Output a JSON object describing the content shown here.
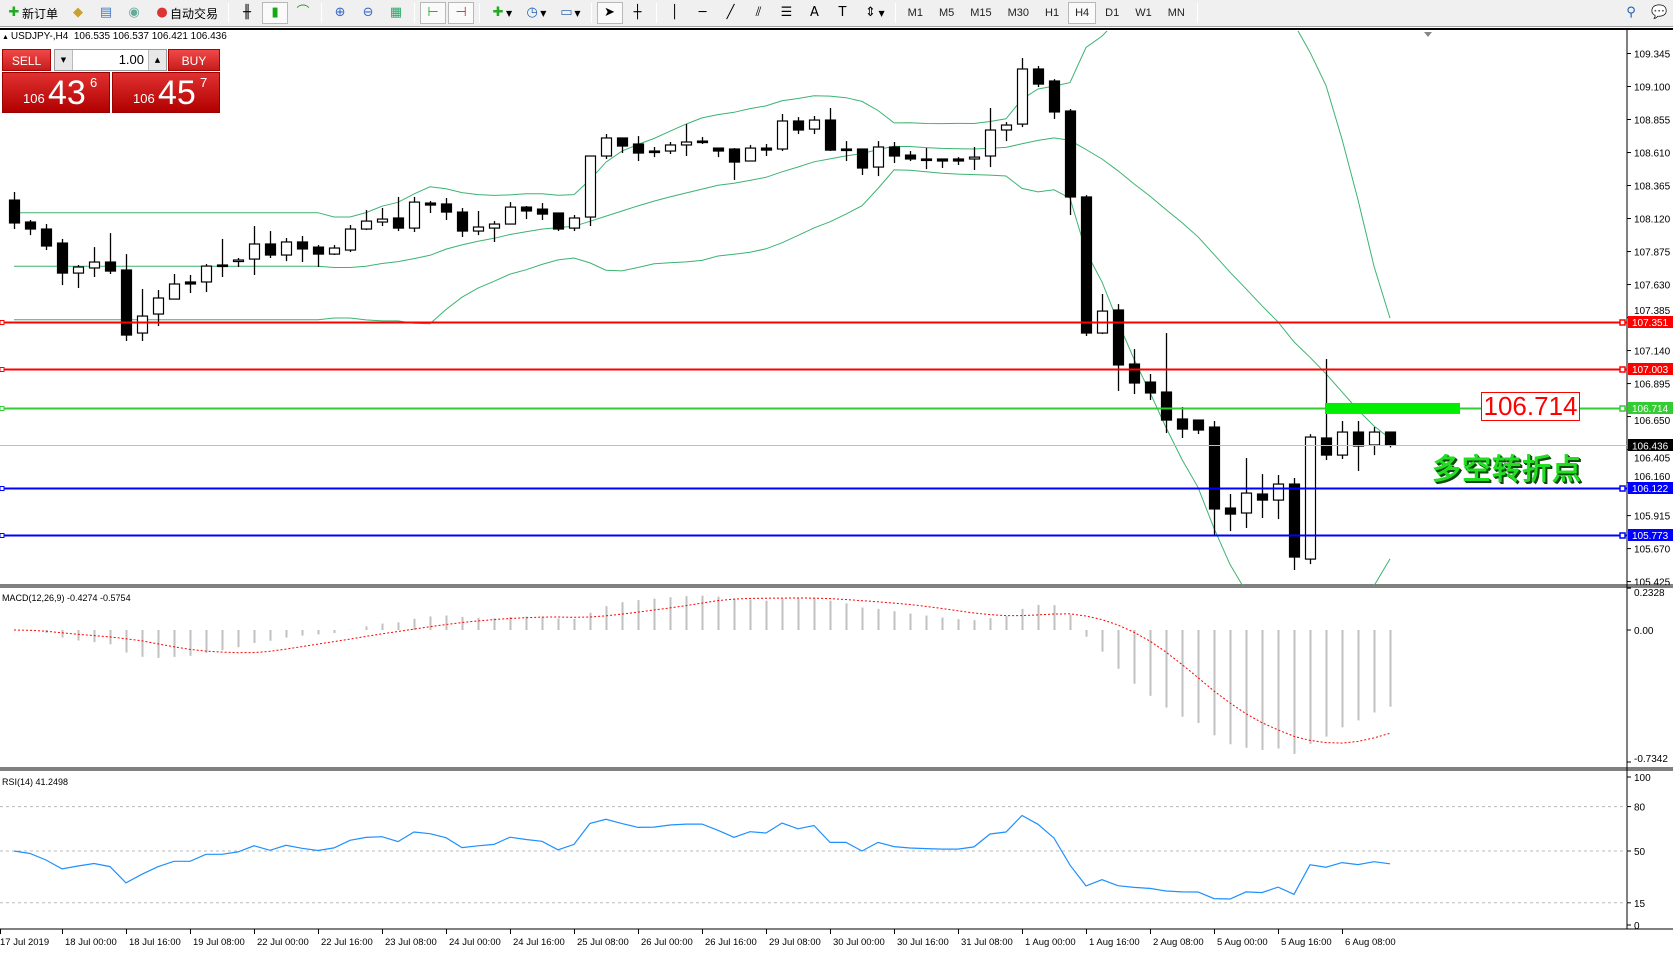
{
  "toolbar": {
    "new_order": "新订单",
    "auto_trading": "自动交易",
    "timeframes": [
      "M1",
      "M5",
      "M15",
      "M30",
      "H1",
      "H4",
      "D1",
      "W1",
      "MN"
    ],
    "active_timeframe": "H4",
    "icons": [
      "new-order-icon",
      "market-watch-icon",
      "navigator-icon",
      "signal-icon",
      "auto-trading-icon",
      "bar-chart-icon",
      "candlestick-icon",
      "line-chart-icon",
      "zoom-in-icon",
      "zoom-out-icon",
      "tile-windows-icon",
      "chart-shift-icon",
      "autoscroll-icon",
      "indicators-icon",
      "periods-icon",
      "templates-icon",
      "cursor-icon",
      "crosshair-icon",
      "vertical-line-icon",
      "horizontal-line-icon",
      "trendline-icon",
      "equidistant-channel-icon",
      "fibonacci-icon",
      "text-icon",
      "text-label-icon",
      "arrows-icon",
      "search-icon",
      "chat-icon"
    ]
  },
  "header": {
    "symbol": "USDJPY-,H4",
    "ohlc": "106.535 106.537 106.421 106.436"
  },
  "trade_panel": {
    "sell_label": "SELL",
    "buy_label": "BUY",
    "lot": "1.00",
    "sell": {
      "small": "106",
      "large": "43",
      "pip": "6"
    },
    "buy": {
      "small": "106",
      "large": "45",
      "pip": "7"
    }
  },
  "colors": {
    "up_candle": "#ffffff",
    "down_candle": "#000000",
    "bands": "#3cb371",
    "resistance": "#ff0000",
    "pivot": "#33cc33",
    "support": "#0000ff",
    "macd_hist": "#c0c0c0",
    "macd_signal": "#ff0000",
    "rsi": "#1e90ff"
  },
  "annotation": {
    "pivot_value": "106.714",
    "pivot_text": "多空转折点",
    "pivot_bar_color": "#00ee00"
  },
  "chart_data": {
    "type": "candlestick",
    "symbol": "USDJPY-",
    "timeframe": "H4",
    "ohlc_order": [
      "open",
      "high",
      "low",
      "close"
    ],
    "ylim": [
      105.4,
      109.51
    ],
    "price_ticks": [
      "109.345",
      "109.100",
      "108.855",
      "108.610",
      "108.365",
      "108.120",
      "107.875",
      "107.630",
      "107.385",
      "107.140",
      "106.895",
      "106.650",
      "106.405",
      "106.160",
      "105.915",
      "105.670",
      "105.425"
    ],
    "time_labels": [
      {
        "bar": -1,
        "label": "17 Jul 2019"
      },
      {
        "bar": 3,
        "label": "18 Jul 00:00"
      },
      {
        "bar": 7,
        "label": "18 Jul 16:00"
      },
      {
        "bar": 11,
        "label": "19 Jul 08:00"
      },
      {
        "bar": 15,
        "label": "22 Jul 00:00"
      },
      {
        "bar": 19,
        "label": "22 Jul 16:00"
      },
      {
        "bar": 23,
        "label": "23 Jul 08:00"
      },
      {
        "bar": 27,
        "label": "24 Jul 00:00"
      },
      {
        "bar": 31,
        "label": "24 Jul 16:00"
      },
      {
        "bar": 35,
        "label": "25 Jul 08:00"
      },
      {
        "bar": 39,
        "label": "26 Jul 00:00"
      },
      {
        "bar": 43,
        "label": "26 Jul 16:00"
      },
      {
        "bar": 47,
        "label": "29 Jul 08:00"
      },
      {
        "bar": 51,
        "label": "30 Jul 00:00"
      },
      {
        "bar": 55,
        "label": "30 Jul 16:00"
      },
      {
        "bar": 59,
        "label": "31 Jul 08:00"
      },
      {
        "bar": 63,
        "label": "1 Aug 00:00"
      },
      {
        "bar": 67,
        "label": "1 Aug 16:00"
      },
      {
        "bar": 71,
        "label": "2 Aug 08:00"
      },
      {
        "bar": 75,
        "label": "5 Aug 00:00"
      },
      {
        "bar": 79,
        "label": "5 Aug 16:00"
      },
      {
        "bar": 83,
        "label": "6 Aug 08:00"
      }
    ],
    "candles": [
      [
        108.257,
        108.317,
        108.042,
        108.087
      ],
      [
        108.094,
        108.109,
        107.997,
        108.042
      ],
      [
        108.042,
        108.079,
        107.886,
        107.916
      ],
      [
        107.938,
        107.968,
        107.626,
        107.715
      ],
      [
        107.715,
        107.775,
        107.604,
        107.76
      ],
      [
        107.753,
        107.908,
        107.686,
        107.797
      ],
      [
        107.797,
        108.012,
        107.708,
        107.73
      ],
      [
        107.738,
        107.856,
        107.211,
        107.255
      ],
      [
        107.27,
        107.597,
        107.211,
        107.396
      ],
      [
        107.411,
        107.589,
        107.322,
        107.53
      ],
      [
        107.522,
        107.708,
        107.522,
        107.634
      ],
      [
        107.649,
        107.701,
        107.567,
        107.634
      ],
      [
        107.649,
        107.782,
        107.574,
        107.767
      ],
      [
        107.775,
        107.968,
        107.686,
        107.767
      ],
      [
        107.804,
        107.827,
        107.76,
        107.812
      ],
      [
        107.819,
        108.064,
        107.701,
        107.931
      ],
      [
        107.931,
        108.027,
        107.827,
        107.849
      ],
      [
        107.849,
        107.975,
        107.804,
        107.946
      ],
      [
        107.946,
        107.99,
        107.797,
        107.894
      ],
      [
        107.908,
        107.923,
        107.76,
        107.856
      ],
      [
        107.856,
        107.923,
        107.849,
        107.901
      ],
      [
        107.886,
        108.072,
        107.871,
        108.042
      ],
      [
        108.042,
        108.183,
        108.035,
        108.101
      ],
      [
        108.094,
        108.198,
        108.064,
        108.116
      ],
      [
        108.124,
        108.28,
        108.027,
        108.049
      ],
      [
        108.049,
        108.28,
        108.02,
        108.242
      ],
      [
        108.235,
        108.25,
        108.161,
        108.22
      ],
      [
        108.228,
        108.272,
        108.109,
        108.168
      ],
      [
        108.168,
        108.198,
        107.983,
        108.027
      ],
      [
        108.027,
        108.176,
        107.997,
        108.057
      ],
      [
        108.049,
        108.101,
        107.946,
        108.079
      ],
      [
        108.079,
        108.242,
        108.079,
        108.205
      ],
      [
        108.205,
        108.213,
        108.116,
        108.176
      ],
      [
        108.19,
        108.235,
        108.109,
        108.153
      ],
      [
        108.161,
        108.161,
        108.027,
        108.042
      ],
      [
        108.049,
        108.146,
        108.027,
        108.124
      ],
      [
        108.131,
        108.584,
        108.064,
        108.584
      ],
      [
        108.584,
        108.747,
        108.562,
        108.718
      ],
      [
        108.718,
        108.718,
        108.606,
        108.658
      ],
      [
        108.673,
        108.732,
        108.547,
        108.606
      ],
      [
        108.621,
        108.651,
        108.576,
        108.614
      ],
      [
        108.621,
        108.688,
        108.599,
        108.666
      ],
      [
        108.666,
        108.821,
        108.584,
        108.688
      ],
      [
        108.695,
        108.725,
        108.673,
        108.688
      ],
      [
        108.643,
        108.643,
        108.576,
        108.621
      ],
      [
        108.636,
        108.643,
        108.406,
        108.539
      ],
      [
        108.547,
        108.666,
        108.547,
        108.643
      ],
      [
        108.643,
        108.673,
        108.584,
        108.628
      ],
      [
        108.636,
        108.896,
        108.621,
        108.844
      ],
      [
        108.844,
        108.873,
        108.747,
        108.777
      ],
      [
        108.784,
        108.881,
        108.747,
        108.851
      ],
      [
        108.851,
        108.94,
        108.621,
        108.628
      ],
      [
        108.636,
        108.695,
        108.547,
        108.628
      ],
      [
        108.636,
        108.636,
        108.443,
        108.495
      ],
      [
        108.502,
        108.695,
        108.435,
        108.651
      ],
      [
        108.651,
        108.688,
        108.532,
        108.584
      ],
      [
        108.591,
        108.621,
        108.547,
        108.562
      ],
      [
        108.562,
        108.643,
        108.487,
        108.554
      ],
      [
        108.562,
        108.562,
        108.495,
        108.547
      ],
      [
        108.562,
        108.576,
        108.517,
        108.547
      ],
      [
        108.562,
        108.651,
        108.48,
        108.576
      ],
      [
        108.584,
        108.94,
        108.502,
        108.777
      ],
      [
        108.777,
        108.836,
        108.695,
        108.814
      ],
      [
        108.821,
        109.311,
        108.799,
        109.23
      ],
      [
        109.23,
        109.252,
        109.096,
        109.118
      ],
      [
        109.141,
        109.155,
        108.859,
        108.911
      ],
      [
        108.918,
        108.933,
        108.146,
        108.28
      ],
      [
        108.28,
        108.294,
        107.248,
        107.27
      ],
      [
        107.27,
        107.56,
        107.263,
        107.433
      ],
      [
        107.441,
        107.485,
        106.84,
        107.033
      ],
      [
        107.04,
        107.151,
        106.817,
        106.899
      ],
      [
        106.906,
        106.966,
        106.773,
        106.825
      ],
      [
        106.832,
        107.27,
        106.528,
        106.624
      ],
      [
        106.632,
        106.721,
        106.491,
        106.557
      ],
      [
        106.624,
        106.624,
        106.52,
        106.55
      ],
      [
        106.572,
        106.617,
        105.771,
        105.964
      ],
      [
        105.971,
        106.075,
        105.8,
        105.926
      ],
      [
        105.934,
        106.342,
        105.823,
        106.082
      ],
      [
        106.075,
        106.223,
        105.897,
        106.03
      ],
      [
        106.03,
        106.216,
        105.889,
        106.149
      ],
      [
        106.149,
        106.194,
        105.511,
        105.607
      ],
      [
        105.592,
        106.52,
        105.555,
        106.498
      ],
      [
        106.491,
        107.077,
        106.327,
        106.364
      ],
      [
        106.364,
        106.617,
        106.335,
        106.535
      ],
      [
        106.535,
        106.617,
        106.246,
        106.431
      ],
      [
        106.439,
        106.572,
        106.364,
        106.535
      ],
      [
        106.535,
        106.537,
        106.421,
        106.436
      ]
    ],
    "horizontal_lines": [
      {
        "price": "107.351",
        "color": "#ff0000"
      },
      {
        "price": "107.003",
        "color": "#ff0000"
      },
      {
        "price": "106.714",
        "color": "#33cc33"
      },
      {
        "price": "106.122",
        "color": "#0000ff"
      },
      {
        "price": "105.773",
        "color": "#0000ff"
      }
    ],
    "current_price": "106.436",
    "indicators": {
      "bollinger": {
        "period": 20,
        "deviation": 2
      },
      "macd": {
        "label": "MACD(12,26,9) -0.4274 -0.5754",
        "fast": 12,
        "slow": 26,
        "signal": 9,
        "axis_labels": [
          "0.2328",
          "0.00",
          "-0.7342"
        ],
        "ylim": [
          -0.7342,
          0.2328
        ]
      },
      "rsi": {
        "label": "RSI(14) 41.2498",
        "period": 14,
        "levels": [
          80,
          50,
          15
        ],
        "axis_labels": [
          "100",
          "80",
          "50",
          "15",
          "0"
        ]
      }
    }
  }
}
